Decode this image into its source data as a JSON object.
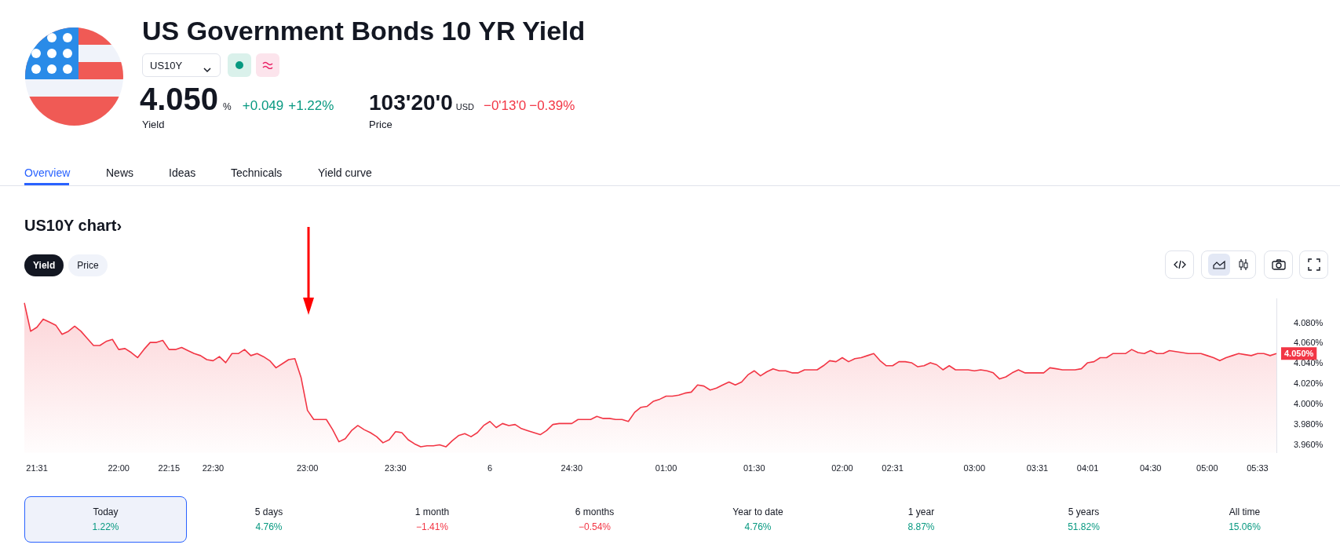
{
  "chart_data": {
    "type": "area",
    "title": "US Government Bonds 10 YR Yield",
    "subtitle": "US10Y chart›",
    "categories": [
      null,
      null,
      "21:31",
      null,
      null,
      null,
      null,
      null,
      null,
      null,
      null,
      null,
      null,
      null,
      null,
      "22:00",
      null,
      null,
      null,
      null,
      null,
      null,
      null,
      "22:15",
      null,
      null,
      null,
      null,
      null,
      null,
      "22:30",
      null,
      null,
      null,
      null,
      null,
      null,
      null,
      null,
      null,
      null,
      null,
      null,
      null,
      null,
      "23:00",
      null,
      null,
      null,
      null,
      null,
      null,
      null,
      null,
      null,
      null,
      null,
      null,
      null,
      "23:30",
      null,
      null,
      null,
      null,
      null,
      null,
      null,
      null,
      null,
      null,
      null,
      null,
      null,
      null,
      "6",
      null,
      null,
      null,
      null,
      null,
      null,
      null,
      null,
      null,
      null,
      null,
      null,
      "24:30",
      null,
      null,
      null,
      null,
      null,
      null,
      null,
      null,
      null,
      null,
      null,
      null,
      null,
      null,
      "01:00",
      null,
      null,
      null,
      null,
      null,
      null,
      null,
      null,
      null,
      null,
      null,
      null,
      null,
      "01:30",
      null,
      null,
      null,
      null,
      null,
      null,
      null,
      null,
      null,
      null,
      null,
      null,
      null,
      "02:00",
      null,
      null,
      null,
      null,
      null,
      null,
      null,
      "02:31",
      null,
      null,
      null,
      null,
      null,
      null,
      null,
      null,
      null,
      null,
      null,
      null,
      "03:00",
      null,
      null,
      null,
      null,
      null,
      null,
      null,
      null,
      null,
      "03:31",
      null,
      null,
      null,
      null,
      null,
      null,
      null,
      "04:01",
      null,
      null,
      null,
      null,
      null,
      null,
      null,
      null,
      null,
      "04:30",
      null,
      null,
      null,
      null,
      null,
      null,
      null,
      null,
      "05:00",
      null,
      null,
      null,
      null,
      null,
      null,
      null,
      "05:33",
      null,
      null,
      null
    ],
    "values": [
      4.1,
      4.072,
      4.076,
      4.084,
      4.081,
      4.078,
      4.069,
      4.072,
      4.077,
      4.072,
      4.065,
      4.058,
      4.058,
      4.062,
      4.064,
      4.054,
      4.055,
      4.051,
      4.046,
      4.054,
      4.061,
      4.061,
      4.063,
      4.054,
      4.054,
      4.056,
      4.053,
      4.05,
      4.048,
      4.044,
      4.043,
      4.047,
      4.041,
      4.05,
      4.05,
      4.054,
      4.048,
      4.05,
      4.047,
      4.043,
      4.036,
      4.04,
      4.044,
      4.045,
      4.026,
      3.994,
      3.985,
      3.985,
      3.985,
      3.975,
      3.963,
      3.966,
      3.974,
      3.979,
      3.975,
      3.972,
      3.968,
      3.962,
      3.965,
      3.973,
      3.972,
      3.965,
      3.961,
      3.958,
      3.959,
      3.959,
      3.96,
      3.958,
      3.964,
      3.969,
      3.971,
      3.968,
      3.972,
      3.979,
      3.983,
      3.977,
      3.981,
      3.979,
      3.98,
      3.976,
      3.974,
      3.972,
      3.97,
      3.974,
      3.98,
      3.981,
      3.981,
      3.981,
      3.985,
      3.985,
      3.985,
      3.988,
      3.986,
      3.986,
      3.985,
      3.985,
      3.983,
      3.992,
      3.997,
      3.998,
      4.003,
      4.005,
      4.008,
      4.008,
      4.009,
      4.011,
      4.012,
      4.019,
      4.018,
      4.014,
      4.016,
      4.019,
      4.022,
      4.019,
      4.022,
      4.029,
      4.033,
      4.028,
      4.032,
      4.035,
      4.033,
      4.033,
      4.031,
      4.031,
      4.034,
      4.034,
      4.034,
      4.038,
      4.043,
      4.042,
      4.046,
      4.042,
      4.045,
      4.046,
      4.048,
      4.05,
      4.043,
      4.038,
      4.038,
      4.042,
      4.042,
      4.041,
      4.037,
      4.038,
      4.041,
      4.039,
      4.034,
      4.038,
      4.034,
      4.034,
      4.034,
      4.033,
      4.034,
      4.033,
      4.031,
      4.025,
      4.027,
      4.031,
      4.034,
      4.031,
      4.031,
      4.031,
      4.031,
      4.036,
      4.035,
      4.034,
      4.034,
      4.034,
      4.035,
      4.041,
      4.042,
      4.046,
      4.046,
      4.05,
      4.05,
      4.05,
      4.054,
      4.051,
      4.05,
      4.053,
      4.05,
      4.05,
      4.053,
      4.052,
      4.051,
      4.05,
      4.05,
      4.05,
      4.048,
      4.046,
      4.043,
      4.046,
      4.048,
      4.05,
      4.049,
      4.048,
      4.05,
      4.05,
      4.048,
      4.05
    ],
    "color": "#f23645",
    "ylim": [
      3.952,
      4.104
    ],
    "yticks": [
      {
        "value": 3.96,
        "label": "3.960%"
      },
      {
        "value": 3.98,
        "label": "3.980%"
      },
      {
        "value": 4.0,
        "label": "4.000%"
      },
      {
        "value": 4.02,
        "label": "4.020%"
      },
      {
        "value": 4.04,
        "label": "4.040%"
      },
      {
        "value": 4.06,
        "label": "4.060%"
      },
      {
        "value": 4.08,
        "label": "4.080%"
      }
    ],
    "grid": false,
    "legend": false,
    "annotations": [
      "US10Y",
      "4.050",
      "%",
      "+0.049",
      "+1.22%",
      "Yield",
      "103'20'0",
      "USD",
      "−0'13'0",
      "−0.39%",
      "Price",
      "Overview",
      "News",
      "Ideas",
      "Technicals",
      "Yield curve",
      "Yield",
      "Price",
      "Today",
      "1.22%",
      "5 days",
      "4.76%",
      "1 month",
      "−1.41%",
      "6 months",
      "−0.54%",
      "Year to date",
      "4.76%",
      "1 year",
      "8.87%",
      "5 years",
      "51.82%",
      "All time",
      "15.06%",
      "4.050%"
    ]
  }
}
